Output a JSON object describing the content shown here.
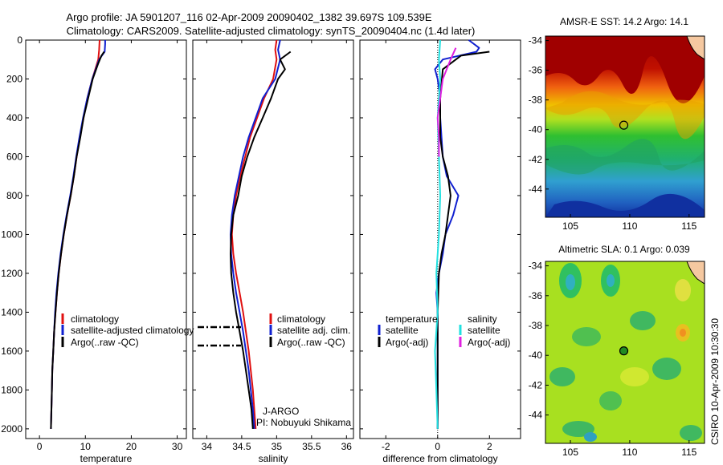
{
  "header": {
    "line1": "Argo profile: JA 5901207_116 02-Apr-2009 20090402_1382 39.697S 109.539E",
    "line2": "Climatology: CARS2009. Satellite-adjusted climatology: synTS_20090404.nc (1.4d later)"
  },
  "footer": {
    "credit": "CSIRO 10-Apr-2009 10:30:30"
  },
  "colors": {
    "climatology": "#e01010",
    "satellite": "#1020d0",
    "argo": "#000000",
    "argo_adj_salinity": "#e020e0",
    "satellite_salinity": "#20e0e0",
    "map_marker": "#228b22"
  },
  "chart_data": [
    {
      "type": "line",
      "xlabel": "temperature",
      "ylabel": "",
      "xlim": [
        -3,
        32
      ],
      "ylim": [
        2050,
        0
      ],
      "xticks": [
        0,
        10,
        20,
        30
      ],
      "yticks": [
        0,
        200,
        400,
        600,
        800,
        1000,
        1200,
        1400,
        1600,
        1800,
        2000
      ],
      "legend": {
        "position": "lower-right",
        "entries": [
          {
            "label": "climatology",
            "color": "#e01010"
          },
          {
            "label": "satellite-adjusted climatology",
            "color": "#1020d0"
          },
          {
            "label": "Argo(..raw -QC)",
            "color": "#000000"
          }
        ]
      },
      "series": [
        {
          "name": "climatology",
          "color": "#e01010",
          "points": [
            [
              13.1,
              0
            ],
            [
              13.0,
              50
            ],
            [
              12.8,
              100
            ],
            [
              11.5,
              200
            ],
            [
              10.4,
              300
            ],
            [
              9.6,
              400
            ],
            [
              8.8,
              500
            ],
            [
              8.1,
              600
            ],
            [
              7.5,
              700
            ],
            [
              6.8,
              800
            ],
            [
              6.0,
              900
            ],
            [
              5.3,
              1000
            ],
            [
              4.7,
              1100
            ],
            [
              4.2,
              1200
            ],
            [
              3.8,
              1300
            ],
            [
              3.5,
              1400
            ],
            [
              3.2,
              1500
            ],
            [
              3.0,
              1600
            ],
            [
              2.8,
              1700
            ],
            [
              2.7,
              1800
            ],
            [
              2.6,
              1900
            ],
            [
              2.5,
              2000
            ]
          ]
        },
        {
          "name": "satellite-adjusted climatology",
          "color": "#1020d0",
          "points": [
            [
              14.3,
              0
            ],
            [
              14.3,
              20
            ],
            [
              14.2,
              60
            ],
            [
              13.0,
              100
            ],
            [
              11.5,
              200
            ],
            [
              10.4,
              300
            ],
            [
              9.5,
              400
            ],
            [
              8.7,
              500
            ],
            [
              8.0,
              600
            ],
            [
              7.4,
              700
            ],
            [
              6.7,
              800
            ],
            [
              5.9,
              900
            ],
            [
              5.2,
              1000
            ],
            [
              4.6,
              1100
            ],
            [
              4.1,
              1200
            ],
            [
              3.7,
              1300
            ],
            [
              3.4,
              1400
            ],
            [
              3.2,
              1500
            ],
            [
              3.0,
              1600
            ],
            [
              2.8,
              1700
            ],
            [
              2.7,
              1800
            ],
            [
              2.6,
              1900
            ],
            [
              2.5,
              2000
            ]
          ]
        },
        {
          "name": "Argo(..raw -QC)",
          "color": "#000000",
          "points": [
            [
              14.1,
              60
            ],
            [
              13.5,
              80
            ],
            [
              12.8,
              120
            ],
            [
              11.6,
              200
            ],
            [
              10.6,
              300
            ],
            [
              9.6,
              400
            ],
            [
              8.9,
              500
            ],
            [
              8.1,
              600
            ],
            [
              7.5,
              700
            ],
            [
              6.8,
              800
            ],
            [
              6.0,
              900
            ],
            [
              5.3,
              1000
            ],
            [
              4.7,
              1100
            ],
            [
              4.2,
              1200
            ],
            [
              3.8,
              1300
            ],
            [
              3.5,
              1400
            ],
            [
              3.2,
              1500
            ],
            [
              3.0,
              1600
            ],
            [
              2.8,
              1700
            ],
            [
              2.7,
              1800
            ],
            [
              2.6,
              1900
            ],
            [
              2.5,
              2000
            ]
          ]
        }
      ]
    },
    {
      "type": "line",
      "xlabel": "salinity",
      "ylabel": "",
      "xlim": [
        33.8,
        36.1
      ],
      "ylim": [
        2050,
        0
      ],
      "xticks": [
        34,
        34.5,
        35,
        35.5,
        36
      ],
      "legend": {
        "position": "lower-right",
        "entries": [
          {
            "label": "climatology",
            "color": "#e01010"
          },
          {
            "label": "satellite adj. clim.",
            "color": "#1020d0"
          },
          {
            "label": "Argo(..raw -QC)",
            "color": "#000000"
          }
        ]
      },
      "annotations": [
        "J-ARGO",
        "PI: Nobuyuki Shikama"
      ],
      "series": [
        {
          "name": "climatology",
          "color": "#e01010",
          "points": [
            [
              35.0,
              0
            ],
            [
              34.98,
              50
            ],
            [
              35.0,
              100
            ],
            [
              34.95,
              200
            ],
            [
              34.82,
              300
            ],
            [
              34.72,
              400
            ],
            [
              34.62,
              500
            ],
            [
              34.55,
              600
            ],
            [
              34.48,
              700
            ],
            [
              34.42,
              800
            ],
            [
              34.38,
              900
            ],
            [
              34.36,
              1000
            ],
            [
              34.38,
              1100
            ],
            [
              34.42,
              1200
            ],
            [
              34.47,
              1300
            ],
            [
              34.52,
              1400
            ],
            [
              34.56,
              1500
            ],
            [
              34.6,
              1600
            ],
            [
              34.63,
              1700
            ],
            [
              34.66,
              1800
            ],
            [
              34.68,
              1900
            ],
            [
              34.7,
              2000
            ]
          ]
        },
        {
          "name": "satellite adj. clim.",
          "color": "#1020d0",
          "points": [
            [
              35.05,
              0
            ],
            [
              35.02,
              50
            ],
            [
              35.05,
              100
            ],
            [
              34.98,
              200
            ],
            [
              34.8,
              300
            ],
            [
              34.7,
              400
            ],
            [
              34.6,
              500
            ],
            [
              34.52,
              600
            ],
            [
              34.46,
              700
            ],
            [
              34.4,
              800
            ],
            [
              34.36,
              900
            ],
            [
              34.34,
              1000
            ],
            [
              34.35,
              1100
            ],
            [
              34.38,
              1200
            ],
            [
              34.42,
              1300
            ],
            [
              34.47,
              1400
            ],
            [
              34.52,
              1500
            ],
            [
              34.56,
              1600
            ],
            [
              34.6,
              1700
            ],
            [
              34.63,
              1800
            ],
            [
              34.66,
              1900
            ],
            [
              34.68,
              2000
            ]
          ]
        },
        {
          "name": "Argo(..raw -QC)",
          "color": "#000000",
          "points": [
            [
              35.2,
              60
            ],
            [
              35.05,
              100
            ],
            [
              35.12,
              150
            ],
            [
              35.02,
              200
            ],
            [
              34.92,
              300
            ],
            [
              34.8,
              400
            ],
            [
              34.68,
              500
            ],
            [
              34.58,
              600
            ],
            [
              34.5,
              700
            ],
            [
              34.45,
              800
            ],
            [
              34.38,
              900
            ],
            [
              34.35,
              1000
            ],
            [
              34.34,
              1100
            ],
            [
              34.35,
              1200
            ],
            [
              34.38,
              1300
            ],
            [
              34.42,
              1400
            ],
            [
              34.47,
              1500
            ],
            [
              34.52,
              1600
            ],
            [
              34.56,
              1700
            ],
            [
              34.6,
              1800
            ],
            [
              34.64,
              1900
            ],
            [
              34.66,
              2000
            ]
          ]
        }
      ]
    },
    {
      "type": "line",
      "xlabel": "difference from climatology",
      "ylabel": "",
      "xlim": [
        -3,
        3.2
      ],
      "ylim": [
        2050,
        0
      ],
      "xticks": [
        -2,
        0,
        2
      ],
      "legend": {
        "position": "lower-center",
        "columns": [
          {
            "title": "temperature",
            "entries": [
              {
                "label": "satellite",
                "color": "#1020d0"
              },
              {
                "label": "Argo(-adj)",
                "color": "#000000"
              }
            ]
          },
          {
            "title": "salinity",
            "entries": [
              {
                "label": "satellite",
                "color": "#20e0e0"
              },
              {
                "label": "Argo(-adj)",
                "color": "#e020e0"
              }
            ]
          }
        ]
      },
      "series": [
        {
          "name": "temperature satellite",
          "color": "#1020d0",
          "points": [
            [
              1.2,
              0
            ],
            [
              1.6,
              40
            ],
            [
              1.5,
              60
            ],
            [
              0.2,
              100
            ],
            [
              -0.1,
              150
            ],
            [
              0.0,
              200
            ],
            [
              0.1,
              300
            ],
            [
              0.1,
              400
            ],
            [
              0.15,
              500
            ],
            [
              0.2,
              600
            ],
            [
              0.35,
              700
            ],
            [
              0.8,
              800
            ],
            [
              0.6,
              900
            ],
            [
              0.3,
              1000
            ],
            [
              0.2,
              1100
            ],
            [
              0.05,
              1200
            ],
            [
              -0.05,
              1300
            ],
            [
              0.0,
              1400
            ],
            [
              0.0,
              1600
            ],
            [
              0.0,
              1800
            ],
            [
              0.0,
              2000
            ]
          ]
        },
        {
          "name": "temperature Argo(-adj)",
          "color": "#000000",
          "points": [
            [
              2.0,
              60
            ],
            [
              0.9,
              80
            ],
            [
              0.2,
              150
            ],
            [
              0.1,
              300
            ],
            [
              0.1,
              400
            ],
            [
              0.1,
              500
            ],
            [
              0.2,
              600
            ],
            [
              0.4,
              700
            ],
            [
              0.5,
              800
            ],
            [
              0.4,
              900
            ],
            [
              0.3,
              1000
            ],
            [
              0.15,
              1100
            ],
            [
              0.05,
              1200
            ],
            [
              0.0,
              1400
            ],
            [
              0.0,
              2000
            ]
          ]
        },
        {
          "name": "salinity satellite",
          "color": "#20e0e0",
          "points": [
            [
              0.1,
              0
            ],
            [
              0.05,
              100
            ],
            [
              0.1,
              200
            ],
            [
              0.0,
              400
            ],
            [
              0.05,
              600
            ],
            [
              0.1,
              800
            ],
            [
              0.05,
              1000
            ],
            [
              -0.05,
              1200
            ],
            [
              0.0,
              1400
            ],
            [
              -0.1,
              1600
            ],
            [
              -0.05,
              1800
            ],
            [
              0.0,
              2000
            ]
          ]
        },
        {
          "name": "salinity Argo(-adj)",
          "color": "#e020e0",
          "points": [
            [
              0.7,
              40
            ],
            [
              0.5,
              100
            ],
            [
              0.2,
              200
            ],
            [
              0.0,
              400
            ],
            [
              0.05,
              500
            ],
            [
              0.05,
              600
            ]
          ]
        }
      ]
    }
  ],
  "maps": [
    {
      "title": "AMSR-E SST: 14.2 Argo: 14.1",
      "x_ticks": [
        "105",
        "110",
        "115"
      ],
      "y_ticks": [
        "-34",
        "-36",
        "-38",
        "-40",
        "-42",
        "-44"
      ],
      "marker": {
        "lon": 109.5,
        "lat": -39.7
      },
      "xlim": [
        102.9,
        116.3
      ],
      "ylim": [
        -45.9,
        -33.7
      ]
    },
    {
      "title": "Altimetric SLA: 0.1 Argo: 0.039",
      "x_ticks": [
        "105",
        "110",
        "115"
      ],
      "y_ticks": [
        "-34",
        "-36",
        "-38",
        "-40",
        "-42",
        "-44"
      ],
      "marker": {
        "lon": 109.5,
        "lat": -39.7
      },
      "xlim": [
        102.9,
        116.3
      ],
      "ylim": [
        -45.9,
        -33.7
      ]
    }
  ]
}
